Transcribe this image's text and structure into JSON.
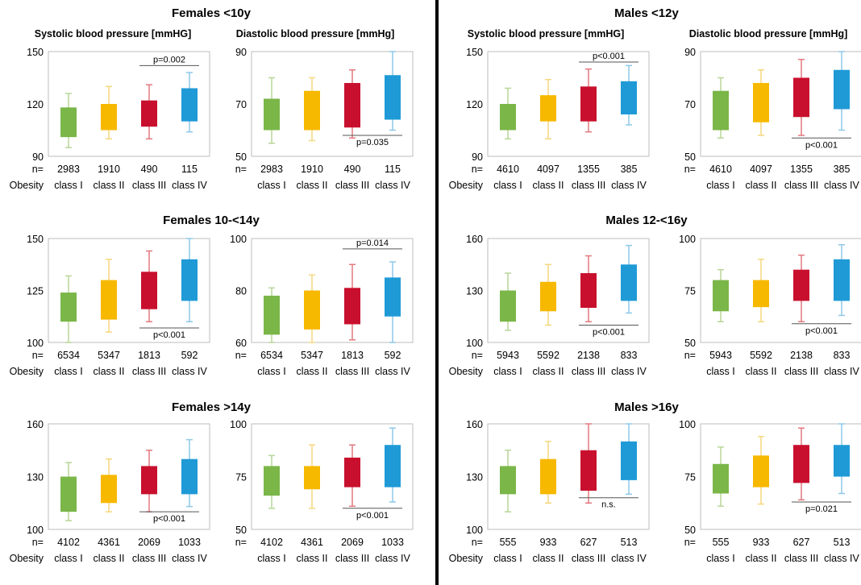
{
  "colors": {
    "class_fills": [
      "#7ab648",
      "#f7b800",
      "#c8102e",
      "#1f9ad6"
    ],
    "class_whiskers": [
      "#b9d699",
      "#f5d77d",
      "#e2797f",
      "#8ec8e8"
    ],
    "frame": "#bdbdbd",
    "divider": "#000000"
  },
  "groups": [
    {
      "title": "Females <10y",
      "n": [
        "2983",
        "1910",
        "490",
        "115"
      ],
      "charts": [
        {
          "title": "Systolic blood pressure [mmHG]",
          "type": "box",
          "ylim": [
            90,
            150
          ],
          "yticks": [
            90,
            120,
            150
          ],
          "boxes": [
            {
              "min": 95,
              "q1": 101,
              "q3": 118,
              "max": 126
            },
            {
              "min": 100,
              "q1": 105,
              "q3": 120,
              "max": 130
            },
            {
              "min": 100,
              "q1": 107,
              "q3": 122,
              "max": 131
            },
            {
              "min": 104,
              "q1": 110,
              "q3": 129,
              "max": 138
            }
          ],
          "annotation": {
            "text": "p=0.002",
            "from": 3,
            "to": 4,
            "pos": "above",
            "y": 142
          }
        },
        {
          "title": "Diastolic blood pressure [mmHg]",
          "type": "box",
          "ylim": [
            50,
            90
          ],
          "yticks": [
            50,
            70,
            90
          ],
          "boxes": [
            {
              "min": 55,
              "q1": 60,
              "q3": 72,
              "max": 80
            },
            {
              "min": 56,
              "q1": 60,
              "q3": 75,
              "max": 80
            },
            {
              "min": 57,
              "q1": 61,
              "q3": 78,
              "max": 83
            },
            {
              "min": 60,
              "q1": 64,
              "q3": 81,
              "max": 90
            }
          ],
          "annotation": {
            "text": "p=0.035",
            "from": 3,
            "to": 4,
            "pos": "below",
            "y": 58
          }
        }
      ]
    },
    {
      "title": "Males <12y",
      "n": [
        "4610",
        "4097",
        "1355",
        "385"
      ],
      "charts": [
        {
          "title": "Systolic blood pressure [mmHG]",
          "type": "box",
          "ylim": [
            90,
            150
          ],
          "yticks": [
            90,
            120,
            150
          ],
          "boxes": [
            {
              "min": 100,
              "q1": 105,
              "q3": 120,
              "max": 129
            },
            {
              "min": 100,
              "q1": 110,
              "q3": 125,
              "max": 134
            },
            {
              "min": 104,
              "q1": 110,
              "q3": 130,
              "max": 140
            },
            {
              "min": 108,
              "q1": 114,
              "q3": 133,
              "max": 142
            }
          ],
          "annotation": {
            "text": "p<0.001",
            "from": 3,
            "to": 4,
            "pos": "above",
            "y": 144
          }
        },
        {
          "title": "Diastolic blood pressure [mmHg]",
          "type": "box",
          "ylim": [
            50,
            90
          ],
          "yticks": [
            50,
            70,
            90
          ],
          "boxes": [
            {
              "min": 57,
              "q1": 60,
              "q3": 75,
              "max": 80
            },
            {
              "min": 58,
              "q1": 63,
              "q3": 78,
              "max": 83
            },
            {
              "min": 58,
              "q1": 65,
              "q3": 80,
              "max": 87
            },
            {
              "min": 60,
              "q1": 68,
              "q3": 83,
              "max": 90
            }
          ],
          "annotation": {
            "text": "p<0.001",
            "from": 3,
            "to": 4,
            "pos": "below",
            "y": 57
          }
        }
      ]
    },
    {
      "title": "Females 10-<14y",
      "n": [
        "6534",
        "5347",
        "1813",
        "592"
      ],
      "charts": [
        {
          "title": "",
          "type": "box",
          "ylim": [
            100,
            150
          ],
          "yticks": [
            100,
            125,
            150
          ],
          "boxes": [
            {
              "min": 100,
              "q1": 110,
              "q3": 124,
              "max": 132
            },
            {
              "min": 105,
              "q1": 111,
              "q3": 130,
              "max": 140
            },
            {
              "min": 110,
              "q1": 116,
              "q3": 134,
              "max": 144
            },
            {
              "min": 110,
              "q1": 120,
              "q3": 140,
              "max": 150
            }
          ],
          "annotation": {
            "text": "p<0.001",
            "from": 3,
            "to": 4,
            "pos": "below",
            "y": 107
          }
        },
        {
          "title": "",
          "type": "box",
          "ylim": [
            60,
            100
          ],
          "yticks": [
            60,
            80,
            100
          ],
          "boxes": [
            {
              "min": 60,
              "q1": 63,
              "q3": 78,
              "max": 81
            },
            {
              "min": 60,
              "q1": 65,
              "q3": 80,
              "max": 86
            },
            {
              "min": 61,
              "q1": 67,
              "q3": 81,
              "max": 90
            },
            {
              "min": 60,
              "q1": 70,
              "q3": 85,
              "max": 91
            }
          ],
          "annotation": {
            "text": "p=0.014",
            "from": 3,
            "to": 4,
            "pos": "above",
            "y": 96
          }
        }
      ]
    },
    {
      "title": "Males 12-<16y",
      "n": [
        "5943",
        "5592",
        "2138",
        "833"
      ],
      "charts": [
        {
          "title": "",
          "type": "box",
          "ylim": [
            100,
            160
          ],
          "yticks": [
            100,
            130,
            160
          ],
          "boxes": [
            {
              "min": 107,
              "q1": 112,
              "q3": 130,
              "max": 140
            },
            {
              "min": 110,
              "q1": 118,
              "q3": 135,
              "max": 145
            },
            {
              "min": 112,
              "q1": 120,
              "q3": 140,
              "max": 150
            },
            {
              "min": 117,
              "q1": 124,
              "q3": 145,
              "max": 156
            }
          ],
          "annotation": {
            "text": "p<0.001",
            "from": 3,
            "to": 4,
            "pos": "below",
            "y": 110
          }
        },
        {
          "title": "",
          "type": "box",
          "ylim": [
            50,
            100
          ],
          "yticks": [
            50,
            75,
            100
          ],
          "boxes": [
            {
              "min": 60,
              "q1": 65,
              "q3": 80,
              "max": 85
            },
            {
              "min": 60,
              "q1": 67,
              "q3": 80,
              "max": 90
            },
            {
              "min": 60,
              "q1": 70,
              "q3": 85,
              "max": 92
            },
            {
              "min": 63,
              "q1": 70,
              "q3": 90,
              "max": 97
            }
          ],
          "annotation": {
            "text": "p<0.001",
            "from": 3,
            "to": 4,
            "pos": "below",
            "y": 59
          }
        }
      ]
    },
    {
      "title": "Females >14y",
      "n": [
        "4102",
        "4361",
        "2069",
        "1033"
      ],
      "charts": [
        {
          "title": "",
          "type": "box",
          "ylim": [
            100,
            160
          ],
          "yticks": [
            100,
            130,
            160
          ],
          "boxes": [
            {
              "min": 105,
              "q1": 110,
              "q3": 130,
              "max": 138
            },
            {
              "min": 110,
              "q1": 115,
              "q3": 131,
              "max": 140
            },
            {
              "min": 110,
              "q1": 120,
              "q3": 136,
              "max": 145
            },
            {
              "min": 113,
              "q1": 120,
              "q3": 140,
              "max": 151
            }
          ],
          "annotation": {
            "text": "p<0.001",
            "from": 3,
            "to": 4,
            "pos": "below",
            "y": 110
          }
        },
        {
          "title": "",
          "type": "box",
          "ylim": [
            50,
            100
          ],
          "yticks": [
            50,
            75,
            100
          ],
          "boxes": [
            {
              "min": 60,
              "q1": 66,
              "q3": 80,
              "max": 85
            },
            {
              "min": 60,
              "q1": 69,
              "q3": 80,
              "max": 90
            },
            {
              "min": 61,
              "q1": 70,
              "q3": 84,
              "max": 90
            },
            {
              "min": 63,
              "q1": 70,
              "q3": 90,
              "max": 98
            }
          ],
          "annotation": {
            "text": "p<0.001",
            "from": 3,
            "to": 4,
            "pos": "below",
            "y": 60
          }
        }
      ]
    },
    {
      "title": "Males >16y",
      "n": [
        "555",
        "933",
        "627",
        "513"
      ],
      "charts": [
        {
          "title": "",
          "type": "box",
          "ylim": [
            100,
            160
          ],
          "yticks": [
            100,
            130,
            160
          ],
          "boxes": [
            {
              "min": 110,
              "q1": 120,
              "q3": 136,
              "max": 145
            },
            {
              "min": 115,
              "q1": 120,
              "q3": 140,
              "max": 150
            },
            {
              "min": 115,
              "q1": 122,
              "q3": 145,
              "max": 160
            },
            {
              "min": 120,
              "q1": 128,
              "q3": 150,
              "max": 160
            }
          ],
          "annotation": {
            "text": "n.s.",
            "from": 3,
            "to": 4,
            "pos": "below",
            "y": 118
          }
        },
        {
          "title": "",
          "type": "box",
          "ylim": [
            50,
            100
          ],
          "yticks": [
            50,
            75,
            100
          ],
          "boxes": [
            {
              "min": 61,
              "q1": 67,
              "q3": 81,
              "max": 89
            },
            {
              "min": 62,
              "q1": 70,
              "q3": 85,
              "max": 94
            },
            {
              "min": 64,
              "q1": 72,
              "q3": 90,
              "max": 98
            },
            {
              "min": 67,
              "q1": 75,
              "q3": 90,
              "max": 100
            }
          ],
          "annotation": {
            "text": "p=0.021",
            "from": 3,
            "to": 4,
            "pos": "below",
            "y": 63
          }
        }
      ]
    }
  ],
  "labels": {
    "n_label": "n=",
    "obesity_label": "Obesity",
    "classes": [
      "class I",
      "class II",
      "class III",
      "class IV"
    ]
  }
}
